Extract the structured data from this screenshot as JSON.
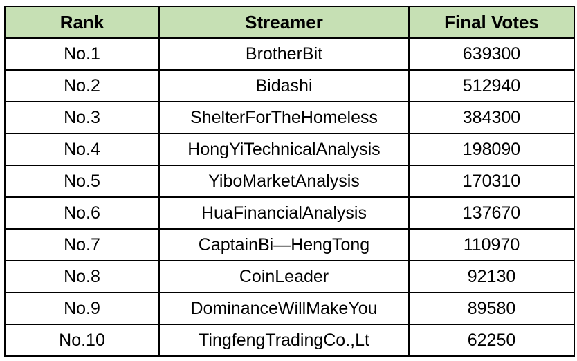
{
  "table": {
    "header_color": "#c6e0b4",
    "columns": [
      "Rank",
      "Streamer",
      "Final Votes"
    ],
    "rows": [
      [
        "No.1",
        "BrotherBit",
        "639300"
      ],
      [
        "No.2",
        "Bidashi",
        "512940"
      ],
      [
        "No.3",
        "ShelterForTheHomeless",
        "384300"
      ],
      [
        "No.4",
        "HongYiTechnicalAnalysis",
        "198090"
      ],
      [
        "No.5",
        "YiboMarketAnalysis",
        "170310"
      ],
      [
        "No.6",
        "HuaFinancialAnalysis",
        "137670"
      ],
      [
        "No.7",
        "CaptainBi—HengTong",
        "110970"
      ],
      [
        "No.8",
        "CoinLeader",
        "92130"
      ],
      [
        "No.9",
        "DominanceWillMakeYou",
        "89580"
      ],
      [
        "No.10",
        "TingfengTradingCo.,Lt",
        "62250"
      ]
    ]
  }
}
